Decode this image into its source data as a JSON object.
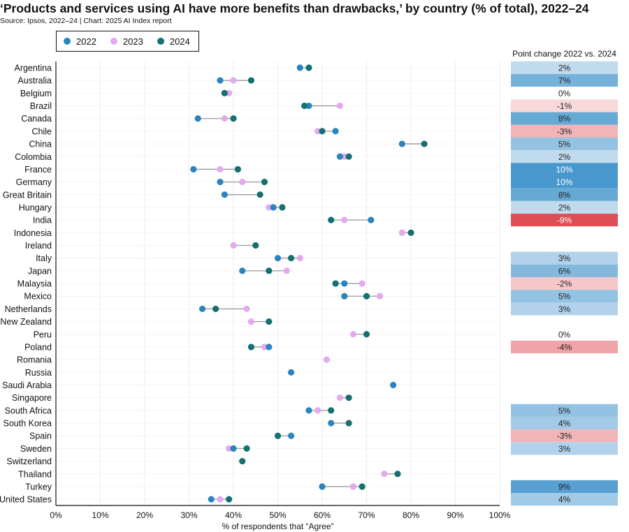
{
  "chart_data": {
    "type": "dumbbell",
    "title": "‘Products and services using AI have more benefits than drawbacks,’ by country (% of total), 2022–24",
    "subtitle": "Source: Ipsos, 2022–24 | Chart: 2025 AI Index report",
    "xlabel": "% of respondents that “Agree”",
    "xlim": [
      0,
      100
    ],
    "x_ticks": [
      "0%",
      "10%",
      "20%",
      "30%",
      "40%",
      "50%",
      "60%",
      "70%",
      "80%",
      "90%",
      "100%"
    ],
    "legend_position": "top-left",
    "side_table_header": "Point change 2022 vs. 2024",
    "series": [
      {
        "name": "2022",
        "color": "#2b84bd"
      },
      {
        "name": "2023",
        "color": "#e3aaf0"
      },
      {
        "name": "2024",
        "color": "#157070"
      }
    ],
    "rows": [
      {
        "country": "Argentina",
        "y2022": 55,
        "y2023": null,
        "y2024": 57,
        "change": "2%"
      },
      {
        "country": "Australia",
        "y2022": 37,
        "y2023": 40,
        "y2024": 44,
        "change": "7%"
      },
      {
        "country": "Belgium",
        "y2022": null,
        "y2023": 39,
        "y2024": 38,
        "change": "0%"
      },
      {
        "country": "Brazil",
        "y2022": 57,
        "y2023": 64,
        "y2024": 56,
        "change": "-1%"
      },
      {
        "country": "Canada",
        "y2022": 32,
        "y2023": 38,
        "y2024": 40,
        "change": "8%"
      },
      {
        "country": "Chile",
        "y2022": 63,
        "y2023": 59,
        "y2024": 60,
        "change": "-3%"
      },
      {
        "country": "China",
        "y2022": 78,
        "y2023": null,
        "y2024": 83,
        "change": "5%"
      },
      {
        "country": "Colombia",
        "y2022": 64,
        "y2023": 65,
        "y2024": 66,
        "change": "2%"
      },
      {
        "country": "France",
        "y2022": 31,
        "y2023": 37,
        "y2024": 41,
        "change": "10%"
      },
      {
        "country": "Germany",
        "y2022": 37,
        "y2023": 42,
        "y2024": 47,
        "change": "10%"
      },
      {
        "country": "Great Britain",
        "y2022": 38,
        "y2023": null,
        "y2024": 46,
        "change": "8%"
      },
      {
        "country": "Hungary",
        "y2022": 49,
        "y2023": 48,
        "y2024": 51,
        "change": "2%"
      },
      {
        "country": "India",
        "y2022": 71,
        "y2023": 65,
        "y2024": 62,
        "change": "-9%"
      },
      {
        "country": "Indonesia",
        "y2022": null,
        "y2023": 78,
        "y2024": 80,
        "change": ""
      },
      {
        "country": "Ireland",
        "y2022": null,
        "y2023": 40,
        "y2024": 45,
        "change": ""
      },
      {
        "country": "Italy",
        "y2022": 50,
        "y2023": 55,
        "y2024": 53,
        "change": "3%"
      },
      {
        "country": "Japan",
        "y2022": 42,
        "y2023": 52,
        "y2024": 48,
        "change": "6%"
      },
      {
        "country": "Malaysia",
        "y2022": 65,
        "y2023": 69,
        "y2024": 63,
        "change": "-2%"
      },
      {
        "country": "Mexico",
        "y2022": 65,
        "y2023": 73,
        "y2024": 70,
        "change": "5%"
      },
      {
        "country": "Netherlands",
        "y2022": 33,
        "y2023": 43,
        "y2024": 36,
        "change": "3%"
      },
      {
        "country": "New Zealand",
        "y2022": null,
        "y2023": 44,
        "y2024": 48,
        "change": ""
      },
      {
        "country": "Peru",
        "y2022": null,
        "y2023": 67,
        "y2024": 70,
        "change": "0%"
      },
      {
        "country": "Poland",
        "y2022": 48,
        "y2023": 47,
        "y2024": 44,
        "change": "-4%"
      },
      {
        "country": "Romania",
        "y2022": null,
        "y2023": 61,
        "y2024": null,
        "change": ""
      },
      {
        "country": "Russia",
        "y2022": 53,
        "y2023": null,
        "y2024": null,
        "change": ""
      },
      {
        "country": "Saudi Arabia",
        "y2022": 76,
        "y2023": null,
        "y2024": null,
        "change": ""
      },
      {
        "country": "Singapore",
        "y2022": null,
        "y2023": 64,
        "y2024": 66,
        "change": ""
      },
      {
        "country": "South Africa",
        "y2022": 57,
        "y2023": 59,
        "y2024": 62,
        "change": "5%"
      },
      {
        "country": "South Korea",
        "y2022": 62,
        "y2023": null,
        "y2024": 66,
        "change": "4%"
      },
      {
        "country": "Spain",
        "y2022": 53,
        "y2023": null,
        "y2024": 50,
        "change": "-3%"
      },
      {
        "country": "Sweden",
        "y2022": 40,
        "y2023": 39,
        "y2024": 43,
        "change": "3%"
      },
      {
        "country": "Switzerland",
        "y2022": null,
        "y2023": null,
        "y2024": 42,
        "change": ""
      },
      {
        "country": "Thailand",
        "y2022": null,
        "y2023": 74,
        "y2024": 77,
        "change": ""
      },
      {
        "country": "Turkey",
        "y2022": 60,
        "y2023": 67,
        "y2024": 69,
        "change": "9%"
      },
      {
        "country": "United States",
        "y2022": 35,
        "y2023": 37,
        "y2024": 39,
        "change": "4%"
      }
    ]
  }
}
